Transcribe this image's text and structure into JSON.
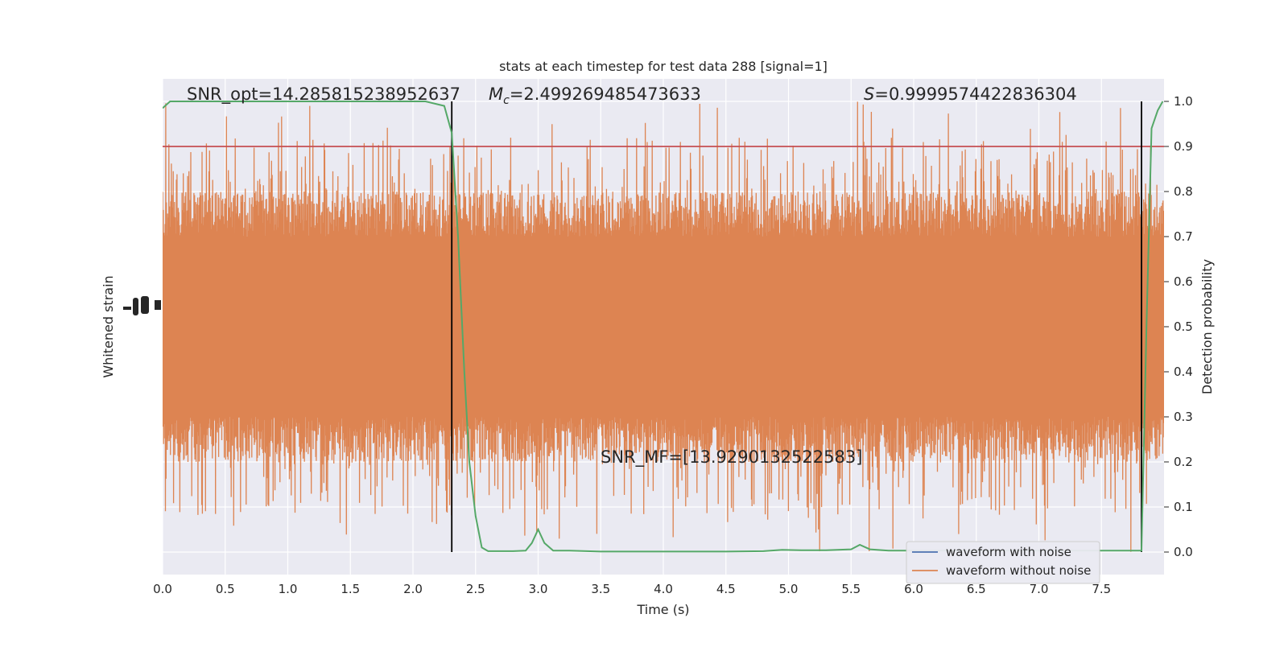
{
  "chart_data": {
    "type": "line",
    "title": "stats at each timestep for test data 288 [signal=1]",
    "xlabel": "Time (s)",
    "ylabel_left": "Whitened strain",
    "ylabel_right": "Detection probability",
    "xlim": [
      0.0,
      8.0
    ],
    "x_ticks": [
      "0.0",
      "0.5",
      "1.0",
      "1.5",
      "2.0",
      "2.5",
      "3.0",
      "3.5",
      "4.0",
      "4.5",
      "5.0",
      "5.5",
      "6.0",
      "6.5",
      "7.0",
      "7.5"
    ],
    "ylim_right": [
      -0.05,
      1.05
    ],
    "y_ticks_right": [
      "0.0",
      "0.1",
      "0.2",
      "0.3",
      "0.4",
      "0.5",
      "0.6",
      "0.7",
      "0.8",
      "0.9",
      "1.0"
    ],
    "grid": true,
    "legend_position": "lower-right",
    "annotations": {
      "snr_opt": "SNR_opt=14.285815238952637",
      "mc_symbol": "M",
      "mc_sub": "c",
      "mc_value": "=2.499269485473633",
      "s_symbol": "S",
      "s_value": "=0.9999574422836304",
      "snr_mf": "SNR_MF=[13.9290132522583]"
    },
    "threshold": {
      "value": 0.9,
      "color": "#c44e52"
    },
    "vertical_markers": [
      2.31,
      7.82
    ],
    "strain_band": {
      "center": 0.5,
      "core_half_width": 0.2,
      "typical_half_width": 0.3,
      "max_half_width": 0.5
    },
    "series": [
      {
        "name": "waveform with noise",
        "color": "#4c72b0"
      },
      {
        "name": "waveform without noise",
        "color": "#dd8452"
      }
    ],
    "probability_series": {
      "color": "#55a868",
      "x": [
        0.0,
        0.06,
        0.2,
        0.5,
        1.0,
        1.5,
        2.0,
        2.1,
        2.25,
        2.31,
        2.36,
        2.41,
        2.45,
        2.5,
        2.55,
        2.6,
        2.68,
        2.8,
        2.9,
        2.95,
        3.0,
        3.05,
        3.12,
        3.25,
        3.5,
        4.0,
        4.5,
        4.8,
        4.95,
        5.1,
        5.3,
        5.5,
        5.57,
        5.65,
        5.8,
        6.0,
        6.5,
        7.0,
        7.3,
        7.6,
        7.75,
        7.82,
        7.86,
        7.9,
        7.95,
        7.99
      ],
      "y": [
        0.985,
        1.0,
        1.0,
        1.0,
        1.0,
        1.0,
        1.0,
        1.0,
        0.99,
        0.93,
        0.7,
        0.4,
        0.2,
        0.08,
        0.01,
        0.002,
        0.002,
        0.002,
        0.003,
        0.02,
        0.05,
        0.02,
        0.003,
        0.003,
        0.001,
        0.001,
        0.001,
        0.002,
        0.005,
        0.004,
        0.004,
        0.006,
        0.016,
        0.006,
        0.003,
        0.003,
        0.003,
        0.003,
        0.003,
        0.003,
        0.003,
        0.003,
        0.5,
        0.94,
        0.98,
        1.0
      ]
    }
  }
}
